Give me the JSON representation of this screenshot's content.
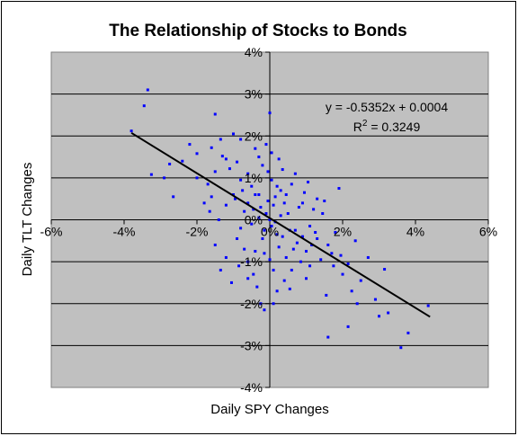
{
  "chart_data": {
    "type": "scatter",
    "title": "The Relationship of Stocks to Bonds",
    "xlabel": "Daily SPY Changes",
    "ylabel": "Daily TLT Changes",
    "xlim": [
      -0.06,
      0.06
    ],
    "ylim": [
      -0.04,
      0.04
    ],
    "x_ticks": [
      -0.06,
      -0.04,
      -0.02,
      0.0,
      0.02,
      0.04,
      0.06
    ],
    "y_ticks": [
      -0.04,
      -0.03,
      -0.02,
      -0.01,
      0.0,
      0.01,
      0.02,
      0.03,
      0.04
    ],
    "x_tick_labels": [
      "-6%",
      "-4%",
      "-2%",
      "0%",
      "2%",
      "4%",
      "6%"
    ],
    "y_tick_labels": [
      "-4%",
      "-3%",
      "-2%",
      "-1%",
      "0%",
      "1%",
      "2%",
      "3%",
      "4%"
    ],
    "grid": "horizontal",
    "colors": {
      "plot_background": "#c0c0c0",
      "points": "#0000ff",
      "trendline": "#000000",
      "gridlines": "#000000",
      "chart_border": "#000000"
    },
    "trendline": {
      "slope": -0.5352,
      "intercept": 0.0004,
      "x_range": [
        -0.038,
        0.044
      ],
      "equation_text": "y = -0.5352x + 0.0004",
      "r2_prefix": "R",
      "r2_exp": "2",
      "r2_suffix": " = 0.3249"
    },
    "series": [
      {
        "points": [
          [
            -0.0335,
            0.031
          ],
          [
            -0.0345,
            0.0272
          ],
          [
            -0.038,
            0.0212
          ],
          [
            -0.0325,
            0.0108
          ],
          [
            -0.0275,
            0.0133
          ],
          [
            -0.0265,
            0.0055
          ],
          [
            -0.022,
            0.018
          ],
          [
            -0.02,
            0.0158
          ],
          [
            -0.015,
            0.0252
          ],
          [
            -0.0135,
            0.0192
          ],
          [
            -0.013,
            0.0152
          ],
          [
            -0.016,
            0.0172
          ],
          [
            -0.015,
            0.0115
          ],
          [
            -0.017,
            0.0085
          ],
          [
            -0.012,
            0.0145
          ],
          [
            -0.01,
            0.0205
          ],
          [
            -0.008,
            0.0192
          ],
          [
            -0.009,
            0.0138
          ],
          [
            -0.011,
            0.0122
          ],
          [
            -0.016,
            0.0055
          ],
          [
            -0.0165,
            0.002
          ],
          [
            -0.014,
            0.0
          ],
          [
            -0.012,
            0.0035
          ],
          [
            -0.01,
            0.006
          ],
          [
            -0.008,
            0.0095
          ],
          [
            -0.006,
            0.011
          ],
          [
            -0.005,
            0.008
          ],
          [
            -0.004,
            0.017
          ],
          [
            -0.003,
            0.015
          ],
          [
            -0.002,
            0.013
          ],
          [
            -0.001,
            0.018
          ],
          [
            0.0,
            0.0255
          ],
          [
            -0.004,
            0.006
          ],
          [
            -0.006,
            0.004
          ],
          [
            -0.007,
            0.002
          ],
          [
            -0.005,
            -0.001
          ],
          [
            -0.008,
            -0.002
          ],
          [
            -0.009,
            -0.0045
          ],
          [
            -0.007,
            -0.007
          ],
          [
            -0.006,
            -0.01
          ],
          [
            -0.0045,
            -0.013
          ],
          [
            -0.0035,
            -0.016
          ],
          [
            -0.0025,
            -0.02
          ],
          [
            -0.0015,
            -0.0215
          ],
          [
            -0.012,
            -0.009
          ],
          [
            -0.0135,
            -0.012
          ],
          [
            -0.015,
            -0.006
          ],
          [
            -0.0105,
            -0.015
          ],
          [
            -0.003,
            0.0005
          ],
          [
            -0.0015,
            -0.0025
          ],
          [
            -0.0005,
            0.0045
          ],
          [
            0.0005,
            0.0095
          ],
          [
            0.001,
            0.0035
          ],
          [
            0.0015,
            -0.0005
          ],
          [
            0.002,
            -0.0035
          ],
          [
            0.0025,
            -0.0065
          ],
          [
            0.003,
            0.007
          ],
          [
            0.004,
            0.004
          ],
          [
            0.005,
            0.0015
          ],
          [
            0.0055,
            -0.0025
          ],
          [
            0.006,
            0.0085
          ],
          [
            0.007,
            0.011
          ],
          [
            0.0075,
            -0.0055
          ],
          [
            0.008,
            0.003
          ],
          [
            0.009,
            -0.004
          ],
          [
            0.0095,
            0.0065
          ],
          [
            0.01,
            -0.0075
          ],
          [
            0.011,
            -0.0015
          ],
          [
            0.012,
            0.0025
          ],
          [
            0.013,
            -0.0045
          ],
          [
            0.014,
            -0.0095
          ],
          [
            0.015,
            0.0045
          ],
          [
            0.016,
            -0.006
          ],
          [
            0.017,
            -0.008
          ],
          [
            0.018,
            -0.003
          ],
          [
            0.019,
            0.0075
          ],
          [
            0.02,
            -0.013
          ],
          [
            0.0215,
            -0.0105
          ],
          [
            0.0225,
            -0.017
          ],
          [
            0.0235,
            -0.005
          ],
          [
            0.025,
            -0.0145
          ],
          [
            0.027,
            -0.009
          ],
          [
            0.029,
            -0.019
          ],
          [
            0.03,
            -0.023
          ],
          [
            0.0315,
            -0.0118
          ],
          [
            0.0325,
            -0.0222
          ],
          [
            0.036,
            -0.0305
          ],
          [
            0.038,
            -0.027
          ],
          [
            0.0435,
            -0.0205
          ],
          [
            0.016,
            -0.028
          ],
          [
            0.0215,
            -0.0255
          ],
          [
            0.0155,
            -0.018
          ],
          [
            0.011,
            -0.011
          ],
          [
            0.006,
            -0.012
          ],
          [
            0.004,
            -0.0145
          ],
          [
            0.002,
            -0.017
          ],
          [
            0.001,
            -0.02
          ],
          [
            0.0045,
            -0.009
          ],
          [
            0.007,
            -0.0025
          ],
          [
            0.0,
            0.0
          ],
          [
            -0.001,
            0.0015
          ],
          [
            0.0005,
            -0.0015
          ],
          [
            -0.002,
            -0.0045
          ],
          [
            0.003,
            0.001
          ],
          [
            -0.0025,
            0.003
          ],
          [
            0.0015,
            0.0055
          ],
          [
            0.0035,
            0.012
          ],
          [
            0.0025,
            0.0145
          ],
          [
            -0.0005,
            0.0115
          ],
          [
            0.0005,
            0.016
          ],
          [
            -0.004,
            -0.0075
          ],
          [
            0.0085,
            -0.01
          ],
          [
            0.0105,
            0.009
          ],
          [
            0.0125,
            -0.003
          ],
          [
            0.0145,
            0.0015
          ],
          [
            0.0195,
            -0.0085
          ],
          [
            -0.02,
            0.01
          ],
          [
            -0.018,
            0.004
          ],
          [
            -0.024,
            0.014
          ],
          [
            -0.029,
            0.01
          ],
          [
            -0.006,
            -0.014
          ],
          [
            0.0055,
            -0.0165
          ],
          [
            0.009,
            0.004
          ],
          [
            0.0115,
            -0.006
          ],
          [
            -0.003,
            0.006
          ],
          [
            0.002,
            0.008
          ],
          [
            0.0045,
            0.006
          ],
          [
            0.0065,
            -0.007
          ],
          [
            -0.0015,
            -0.008
          ],
          [
            0.001,
            -0.012
          ],
          [
            0.0035,
            -0.004
          ],
          [
            -0.0045,
            0.0025
          ],
          [
            -0.0095,
            0.005
          ],
          [
            -0.0075,
            0.007
          ],
          [
            0.013,
            0.005
          ],
          [
            0.0175,
            -0.011
          ],
          [
            0.024,
            -0.02
          ],
          [
            0.01,
            -0.014
          ],
          [
            -0.0085,
            -0.011
          ],
          [
            0.0,
            -0.0095
          ]
        ]
      }
    ]
  }
}
